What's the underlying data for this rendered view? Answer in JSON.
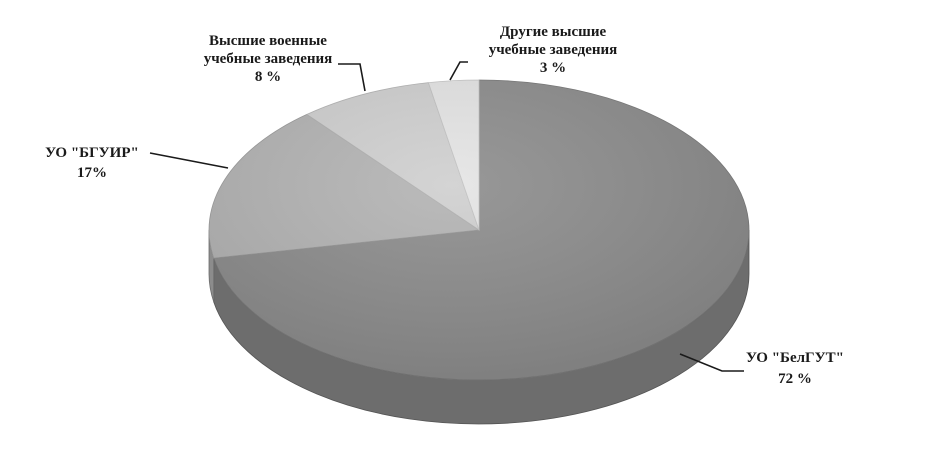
{
  "chart_data": {
    "type": "pie",
    "style": "3d",
    "slices": [
      {
        "label": "УО \"БелГУТ\"",
        "value": 72,
        "value_label": "72 %",
        "color": "#8c8c8c"
      },
      {
        "label": "УО \"БГУИР\"",
        "value": 17,
        "value_label": "17%",
        "color": "#b3b3b3"
      },
      {
        "label": "Высшие военные учебные заведения",
        "value": 8,
        "value_label": "8 %",
        "color": "#cfcfcf"
      },
      {
        "label": "Другие высшие учебные заведения",
        "value": 3,
        "value_label": "3 %",
        "color": "#e4e4e4"
      }
    ],
    "legend": "none"
  },
  "labels": {
    "belgut": {
      "line1": "УО \"БелГУТ\"",
      "line2": "72 %"
    },
    "bguir": {
      "line1": "УО \"БГУИР\"",
      "line2": "17%"
    },
    "military": {
      "line1": "Высшие военные",
      "line2": "учебные заведения",
      "line3": "8 %"
    },
    "other": {
      "line1": "Другие высшие",
      "line2": "учебные заведения",
      "line3": "3 %"
    }
  }
}
